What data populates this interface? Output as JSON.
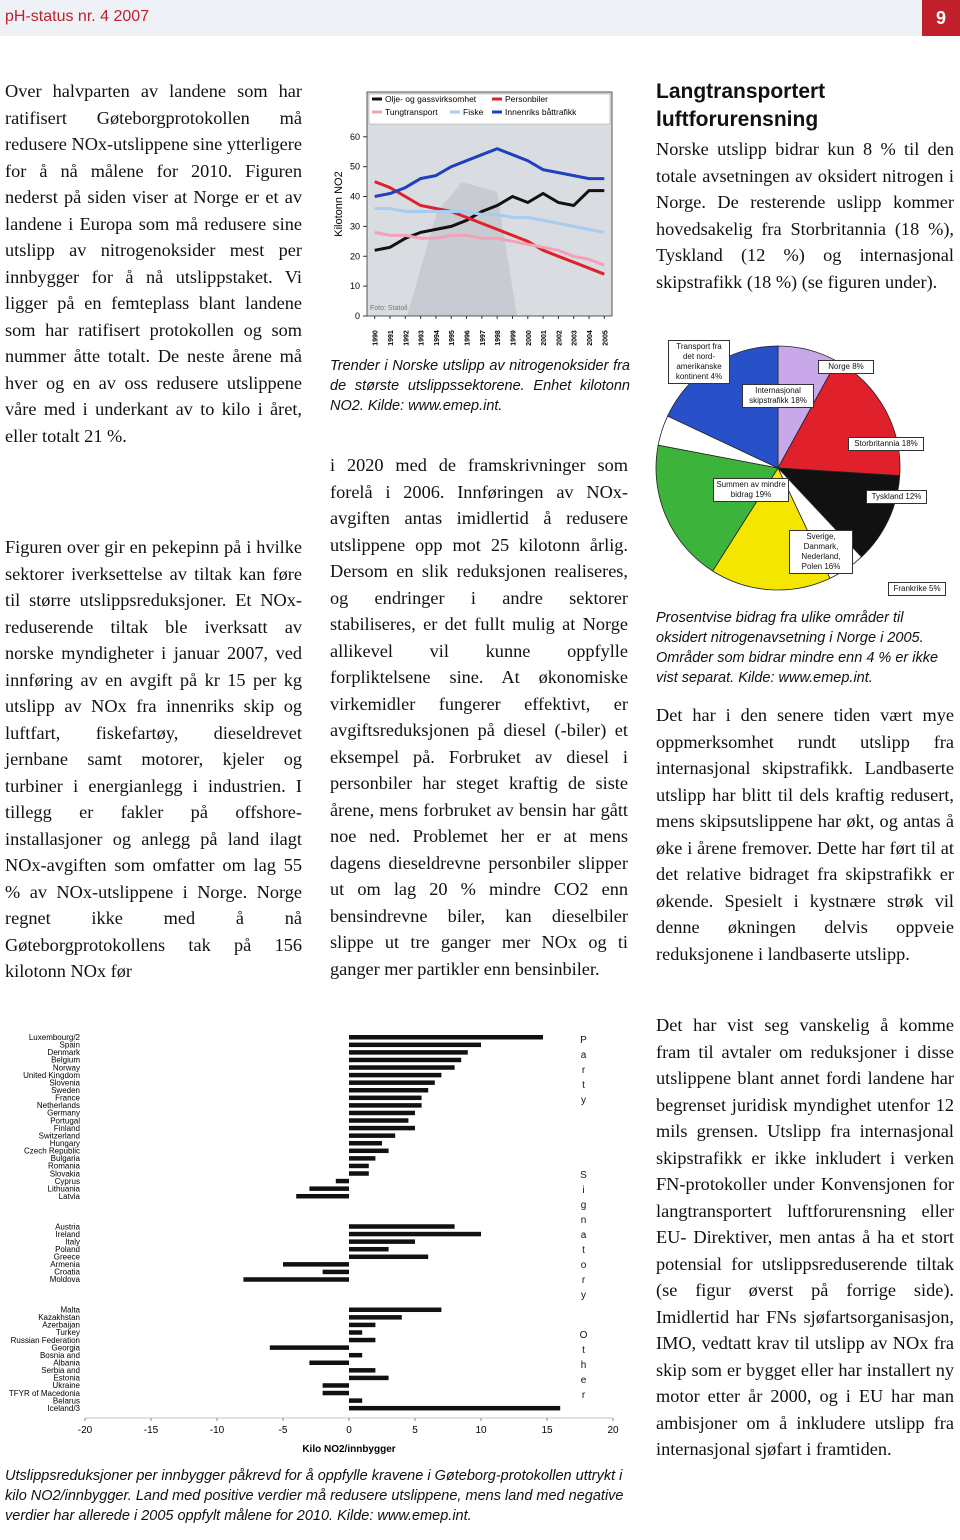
{
  "document": {
    "header": {
      "publication": "pH-status nr. 4 2007",
      "page_number": "9"
    },
    "left": {
      "paragraphs": [
        "Over halvparten av landene som har ratifisert Gøteborgprotokollen må redusere NOx-utslippene sine ytterligere for å nå målene for 2010. Figuren nederst på siden viser at Norge er et av landene i Europa som må redusere sine utslipp av nitrogenoksider mest per innbygger for å nå utslippstaket. Vi ligger på en femteplass blant landene som har ratifisert protokollen og som nummer åtte totalt. De neste årene må hver og en av oss redusere utslippene våre med i underkant av to kilo i året, eller totalt 21 %.",
        "Figuren over gir en pekepinn på i hvilke sektorer iverksettelse av tiltak kan føre til større utslippsreduksjoner. Et NOx-reduserende tiltak ble iverksatt av norske myndigheter i januar 2007, ved innføring av en avgift på kr 15 per kg utslipp av NOx fra innenriks skip og luftfart, fiskefartøy, dieseldrevet jernbane samt motorer, kjeler og turbiner i energianlegg i industrien. I tillegg er fakler på offshore-installasjoner og anlegg på land ilagt NOx-avgiften som omfatter om lag 55 % av NOx-utslippene i Norge. Norge regnet ikke med å nå Gøteborgprotokollens tak på 156 kilotonn NOx før"
      ]
    },
    "middle": {
      "caption": "Trender i Norske utslipp av nitrogenoksider fra de største utslippssektorene. Enhet kilotonn NO2. Kilde: www.emep.int.",
      "paragraph": "i 2020 med de framskrivninger som forelå i 2006. Innføringen av NOx-avgiften antas imidlertid å redusere utslippene opp mot 25 kilotonn årlig. Dersom en slik reduksjonen realiseres, og endringer i andre sektorer stabiliseres, er det fullt mulig at Norge allikevel vil kunne oppfylle forpliktelsene sine. At økonomiske virkemidler fungerer effektivt, er avgiftsreduksjonen på diesel (-biler) et eksempel på. Forbruket av diesel i personbiler har steget kraftig de siste årene, mens forbruket av bensin har gått noe ned. Problemet her er at mens dagens dieseldrevne personbiler slipper ut om lag 20 % mindre CO2 enn bensindrevne biler, kan dieselbiler slippe ut tre ganger mer NOx og ti ganger mer partikler enn bensinbiler."
    },
    "right": {
      "heading": "Langtransportert luftforurensning",
      "intro": "Norske utslipp bidrar kun 8 % til den totale avsetningen av oksidert nitrogen i Norge. De resterende uslipp kommer hovedsakelig fra Storbritannia (18 %), Tyskland (12 %) og internasjonal skipstrafikk (18 %) (se figuren under).",
      "caption": "Prosentvise bidrag fra ulike områder til oksidert nitrogenavsetning i Norge i 2005. Områder som bidrar mindre enn 4 % er ikke vist separat. Kilde: www.emep.int.",
      "paragraphs": [
        "Det har i den senere tiden vært mye oppmerksomhet rundt utslipp fra internasjonal skipstrafikk. Landbaserte utslipp har blitt til dels kraftig redusert, mens skipsutslippene har økt, og antas å øke i årene fremover. Dette har ført til at det relative bidraget fra skipstrafikk er økende. Spesielt i kystnære strøk vil denne økningen delvis oppveie reduksjonene i landbaserte utslipp.",
        "Det har vist seg vanskelig å komme fram til avtaler om reduksjoner i disse utslippene blant annet fordi landene har begrenset juridisk myndighet utenfor 12 mils grensen. Utslipp fra internasjonal skipstrafikk er ikke inkludert i verken FN-protokoller under Konvensjonen for langtransportert luftforurensning eller EU- Direktiver, men antas å ha et stort potensial for utslippsreduserende tiltak (se figur øverst på forrige side). Imidlertid har FNs sjøfartsorganisasjon, IMO, vedtatt krav til utslipp av NOx fra skip som er bygget eller har installert ny motor etter år 2000, og i EU har man ambisjoner om å inkludere utslipp fra internasjonal sjøfart i framtiden."
      ]
    },
    "bottom": {
      "caption": "Utslippsreduksjoner per innbygger påkrevd for å oppfylle kravene i Gøteborg-protokollen uttrykt i kilo NO2/innbygger. Land med positive verdier må redusere utslippene, mens land med negative verdier har allerede i 2005 oppfylt målene for 2010. Kilde: www.emep.int."
    }
  },
  "chart_data": [
    {
      "type": "line",
      "ylabel": "Kilotonn NO2",
      "photo_credit": "Foto: Statoil",
      "x": [
        1990,
        1991,
        1992,
        1993,
        1994,
        1995,
        1996,
        1997,
        1998,
        1999,
        2000,
        2001,
        2002,
        2003,
        2004,
        2005
      ],
      "xlim": [
        1989.5,
        2005.5
      ],
      "ylim": [
        0,
        75
      ],
      "yticks": [
        0,
        10,
        20,
        30,
        40,
        50,
        60
      ],
      "series": [
        {
          "name": "Olje- og gassvirksomhet",
          "color": "#111111",
          "values": [
            22,
            23,
            26,
            28,
            29,
            30,
            32,
            35,
            37,
            40,
            38,
            41,
            38,
            37,
            42,
            42
          ]
        },
        {
          "name": "Personbiler",
          "color": "#e0202a",
          "values": [
            45,
            43,
            40,
            37,
            36,
            35,
            33,
            31,
            29,
            27,
            25,
            22,
            20,
            18,
            16,
            14
          ]
        },
        {
          "name": "Tungtransport",
          "color": "#f4a0b8",
          "values": [
            28,
            27,
            27,
            26,
            26,
            27,
            27,
            26,
            26,
            25,
            24,
            23,
            22,
            20,
            19,
            17
          ]
        },
        {
          "name": "Fiske",
          "color": "#a8ccf0",
          "values": [
            36,
            36,
            35,
            35,
            35,
            35,
            35,
            34,
            34,
            33,
            33,
            32,
            31,
            30,
            29,
            28
          ]
        },
        {
          "name": "Innenriks båttrafikk",
          "color": "#2040c0",
          "values": [
            40,
            41,
            43,
            46,
            47,
            50,
            52,
            54,
            56,
            54,
            52,
            49,
            48,
            47,
            46,
            46
          ]
        }
      ]
    },
    {
      "type": "pie",
      "categories": [
        "Norge 8%",
        "Storbritannia 18%",
        "Tyskland 12%",
        "Frankrike 5%",
        "Sverige, Danmark, Nederland, Polen 16%",
        "Summen av mindre bidrag 19%",
        "Transport fra det nord-amerikanske kontinent 4%",
        "Internasjonal skipstrafikk 18%"
      ],
      "values": [
        8,
        18,
        12,
        5,
        16,
        19,
        4,
        18
      ],
      "colors": [
        "#c8a8e8",
        "#e0202a",
        "#111111",
        "#ffffff",
        "#f5e600",
        "#3cb43c",
        "#ffffff",
        "#2850c8"
      ]
    },
    {
      "type": "hbar",
      "xlabel": "Kilo NO2/innbygger",
      "color": "#111111",
      "groups": [
        "Party",
        "Signatory",
        "Other"
      ],
      "categories": [
        "Luxembourg/2",
        "Spain",
        "Denmark",
        "Belgium",
        "Norway",
        "United Kingdom",
        "Slovenia",
        "Sweden",
        "France",
        "Netherlands",
        "Germany",
        "Portugal",
        "Finland",
        "Switzerland",
        "Hungary",
        "Czech Republic",
        "Bulgaria",
        "Romania",
        "Slovakia",
        "Cyprus",
        "Lithuania",
        "Latvia",
        null,
        null,
        null,
        "Austria",
        "Ireland",
        "Italy",
        "Poland",
        "Greece",
        "Armenia",
        "Croatia",
        "Moldova",
        null,
        null,
        null,
        "Malta",
        "Kazakhstan",
        "Azerbaijan",
        "Turkey",
        "Russian Federation",
        "Georgia",
        "Bosnia and",
        "Albania",
        "Serbia and",
        "Estonia",
        "Ukraine",
        "TFYR of Macedonia",
        "Belarus",
        "Iceland/3"
      ],
      "values": [
        14.7,
        10,
        9,
        8.5,
        8,
        7,
        6.5,
        6,
        5.5,
        5.5,
        5,
        4.5,
        5,
        3.5,
        2.5,
        3,
        2,
        1.5,
        1.5,
        -1,
        -3,
        -4,
        null,
        null,
        null,
        8,
        10,
        5,
        3,
        6,
        -5,
        -2,
        -8,
        null,
        null,
        null,
        7,
        4,
        2,
        1,
        2,
        -6,
        1,
        -3,
        2,
        3,
        -2,
        -2,
        1,
        16
      ],
      "xlim": [
        -20,
        20
      ],
      "xticks": [
        -20,
        -15,
        -10,
        -5,
        0,
        5,
        10,
        15,
        20
      ]
    }
  ]
}
